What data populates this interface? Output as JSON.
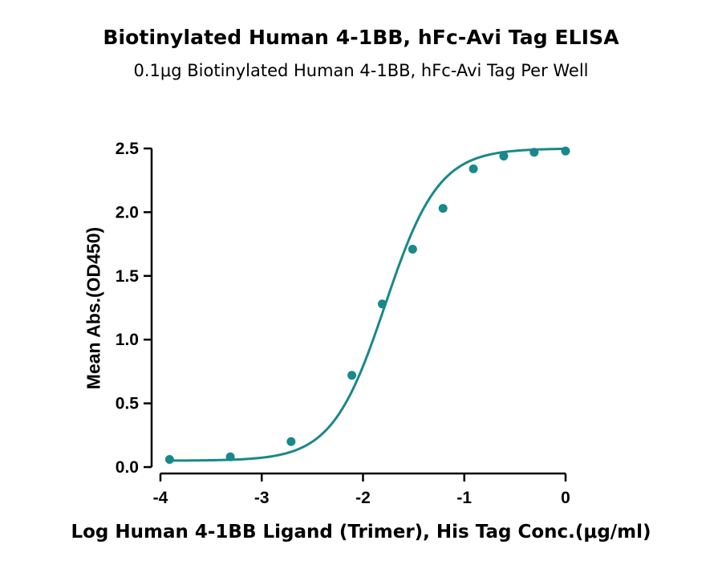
{
  "chart": {
    "title": "Biotinylated Human 4-1BB, hFc-Avi Tag ELISA",
    "subtitle": "0.1μg Biotinylated Human 4-1BB, hFc-Avi Tag Per Well"
  },
  "chart_data": {
    "type": "scatter",
    "title": "Biotinylated Human 4-1BB, hFc-Avi Tag ELISA",
    "subtitle": "0.1μg Biotinylated Human 4-1BB, hFc-Avi Tag Per Well",
    "xlabel": "Log Human 4-1BB Ligand (Trimer), His Tag Conc.(μg/ml)",
    "ylabel": "Mean Abs.(OD450)",
    "xlim": [
      -4,
      0
    ],
    "ylim": [
      0,
      2.5
    ],
    "xticks": [
      "-4",
      "-3",
      "-2",
      "-1",
      "0"
    ],
    "yticks": [
      "0.0",
      "0.5",
      "1.0",
      "1.5",
      "2.0",
      "2.5"
    ],
    "color": "#19888a",
    "grid": false,
    "legend": "none",
    "series": [
      {
        "x": [
          -3.91,
          -3.31,
          -2.71,
          -2.11,
          -1.81,
          -1.51,
          -1.21,
          -0.91,
          -0.61,
          -0.31,
          0.0
        ],
        "y": [
          0.06,
          0.08,
          0.2,
          0.72,
          1.28,
          1.71,
          2.03,
          2.34,
          2.44,
          2.47,
          2.48
        ]
      }
    ],
    "fit": {
      "model": "four-parameter logistic",
      "bottom": 0.05,
      "top": 2.5,
      "log_ec50": -1.78,
      "hill_slope": 1.65
    }
  }
}
